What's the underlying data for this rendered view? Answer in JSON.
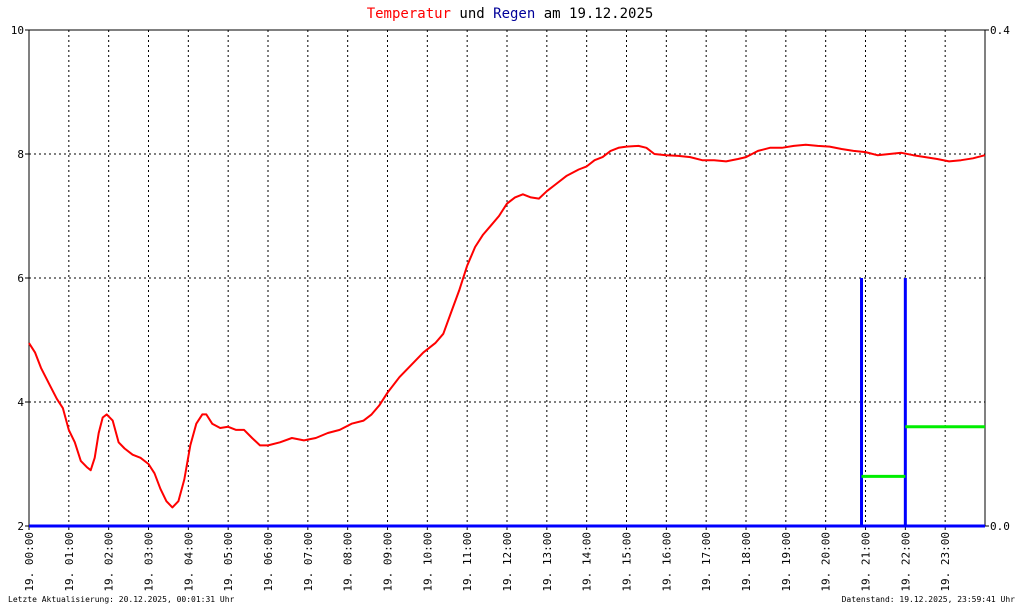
{
  "chart_data": {
    "type": "line",
    "title_parts": [
      {
        "text": "Temperatur",
        "color": "#ff0000"
      },
      {
        "text": " und ",
        "color": "#000000"
      },
      {
        "text": "Regen",
        "color": "#000099"
      },
      {
        "text": " am 19.12.2025",
        "color": "#000000"
      }
    ],
    "y_left": {
      "ylim": [
        2,
        10
      ],
      "ticks": [
        "2",
        "4",
        "6",
        "8",
        "10"
      ]
    },
    "y_right": {
      "ylim": [
        0,
        0.4
      ],
      "ticks": [
        "0.0",
        "0.4"
      ]
    },
    "x": {
      "xlim_hours": [
        0,
        24
      ],
      "tick_labels": [
        "19. 00:00",
        "19. 01:00",
        "19. 02:00",
        "19. 03:00",
        "19. 04:00",
        "19. 05:00",
        "19. 06:00",
        "19. 07:00",
        "19. 08:00",
        "19. 09:00",
        "19. 10:00",
        "19. 11:00",
        "19. 12:00",
        "19. 13:00",
        "19. 14:00",
        "19. 15:00",
        "19. 16:00",
        "19. 17:00",
        "19. 18:00",
        "19. 19:00",
        "19. 20:00",
        "19. 21:00",
        "19. 22:00",
        "19. 23:00"
      ]
    },
    "grid": true,
    "series": [
      {
        "name": "Temperatur",
        "color": "#ff0000",
        "axis": "left",
        "points": [
          [
            0,
            4.95
          ],
          [
            0.15,
            4.8
          ],
          [
            0.3,
            4.55
          ],
          [
            0.5,
            4.3
          ],
          [
            0.7,
            4.05
          ],
          [
            0.85,
            3.9
          ],
          [
            1,
            3.55
          ],
          [
            1.15,
            3.35
          ],
          [
            1.3,
            3.05
          ],
          [
            1.45,
            2.95
          ],
          [
            1.55,
            2.9
          ],
          [
            1.65,
            3.1
          ],
          [
            1.75,
            3.5
          ],
          [
            1.85,
            3.75
          ],
          [
            1.95,
            3.8
          ],
          [
            2.1,
            3.7
          ],
          [
            2.25,
            3.35
          ],
          [
            2.4,
            3.25
          ],
          [
            2.6,
            3.15
          ],
          [
            2.8,
            3.1
          ],
          [
            3,
            3.0
          ],
          [
            3.15,
            2.85
          ],
          [
            3.3,
            2.6
          ],
          [
            3.45,
            2.4
          ],
          [
            3.6,
            2.3
          ],
          [
            3.75,
            2.4
          ],
          [
            3.9,
            2.75
          ],
          [
            4.05,
            3.3
          ],
          [
            4.2,
            3.65
          ],
          [
            4.35,
            3.8
          ],
          [
            4.45,
            3.8
          ],
          [
            4.6,
            3.65
          ],
          [
            4.8,
            3.58
          ],
          [
            5,
            3.6
          ],
          [
            5.2,
            3.55
          ],
          [
            5.4,
            3.55
          ],
          [
            5.6,
            3.42
          ],
          [
            5.8,
            3.3
          ],
          [
            6,
            3.3
          ],
          [
            6.3,
            3.35
          ],
          [
            6.6,
            3.42
          ],
          [
            6.9,
            3.38
          ],
          [
            7.2,
            3.42
          ],
          [
            7.5,
            3.5
          ],
          [
            7.8,
            3.55
          ],
          [
            8.1,
            3.65
          ],
          [
            8.4,
            3.7
          ],
          [
            8.6,
            3.8
          ],
          [
            8.8,
            3.95
          ],
          [
            9,
            4.15
          ],
          [
            9.3,
            4.4
          ],
          [
            9.6,
            4.6
          ],
          [
            9.9,
            4.8
          ],
          [
            10.2,
            4.95
          ],
          [
            10.4,
            5.1
          ],
          [
            10.6,
            5.45
          ],
          [
            10.8,
            5.8
          ],
          [
            11,
            6.2
          ],
          [
            11.2,
            6.5
          ],
          [
            11.4,
            6.7
          ],
          [
            11.6,
            6.85
          ],
          [
            11.8,
            7.0
          ],
          [
            12,
            7.2
          ],
          [
            12.2,
            7.3
          ],
          [
            12.4,
            7.35
          ],
          [
            12.6,
            7.3
          ],
          [
            12.8,
            7.28
          ],
          [
            13,
            7.4
          ],
          [
            13.2,
            7.5
          ],
          [
            13.5,
            7.65
          ],
          [
            13.8,
            7.75
          ],
          [
            14,
            7.8
          ],
          [
            14.2,
            7.9
          ],
          [
            14.4,
            7.95
          ],
          [
            14.6,
            8.05
          ],
          [
            14.8,
            8.1
          ],
          [
            15,
            8.12
          ],
          [
            15.3,
            8.13
          ],
          [
            15.5,
            8.1
          ],
          [
            15.7,
            8.0
          ],
          [
            16,
            7.98
          ],
          [
            16.3,
            7.97
          ],
          [
            16.6,
            7.95
          ],
          [
            16.9,
            7.9
          ],
          [
            17.2,
            7.9
          ],
          [
            17.5,
            7.88
          ],
          [
            17.8,
            7.92
          ],
          [
            18,
            7.95
          ],
          [
            18.3,
            8.05
          ],
          [
            18.6,
            8.1
          ],
          [
            18.9,
            8.1
          ],
          [
            19.2,
            8.13
          ],
          [
            19.5,
            8.15
          ],
          [
            19.8,
            8.13
          ],
          [
            20.1,
            8.12
          ],
          [
            20.4,
            8.08
          ],
          [
            20.7,
            8.05
          ],
          [
            21,
            8.03
          ],
          [
            21.3,
            7.98
          ],
          [
            21.6,
            8.0
          ],
          [
            21.9,
            8.02
          ],
          [
            22.2,
            7.98
          ],
          [
            22.5,
            7.95
          ],
          [
            22.8,
            7.92
          ],
          [
            23.1,
            7.88
          ],
          [
            23.4,
            7.9
          ],
          [
            23.7,
            7.93
          ],
          [
            24,
            7.98
          ]
        ]
      },
      {
        "name": "Regen",
        "color": "#0000ff",
        "axis": "right",
        "bars": [
          [
            20.9,
            0.2
          ],
          [
            22.0,
            0.2
          ]
        ]
      },
      {
        "name": "",
        "color": "#00ee00",
        "axis": "right",
        "steps": [
          [
            20.9,
            22.0,
            0.04
          ],
          [
            22.0,
            24,
            0.08
          ]
        ]
      }
    ],
    "footer_left": "Letzte Aktualisierung: 20.12.2025, 00:01:31 Uhr",
    "footer_right": "Datenstand: 19.12.2025, 23:59:41 Uhr"
  }
}
